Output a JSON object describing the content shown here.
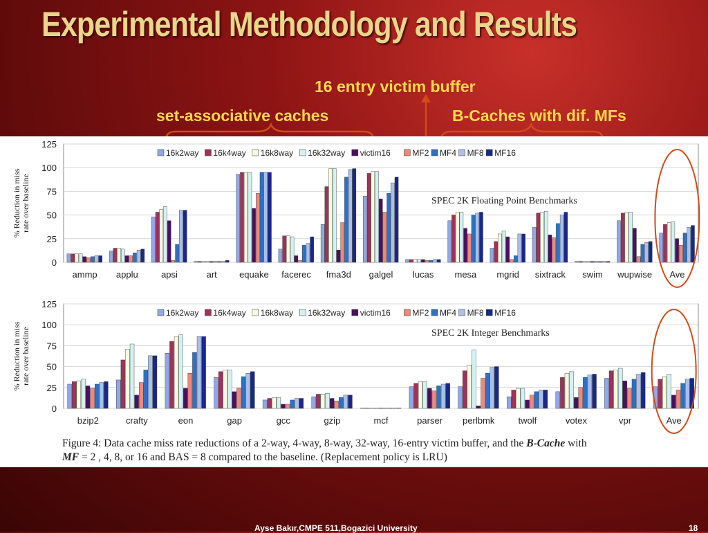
{
  "slide": {
    "title": "Experimental Methodology and Results",
    "footer": "Ayse Bakır,CMPE 511,Bogazici University",
    "page_number": "18",
    "accent_color": "#ffd94a",
    "title_color": "#e8d68a",
    "annotation_color": "#d24a16"
  },
  "annotations": {
    "victim_label": "16 entry victim buffer",
    "setassoc_label": "set-associative caches",
    "bcache_label": "B-Caches with dif. MFs"
  },
  "caption": {
    "part1": "Figure 4: Data cache miss rate reductions of a 2-way, 4-way, 8-way, 32-way, 16-entry victim buffer, and the ",
    "bcache": "B-Cache",
    "part2": " with",
    "mf": "MF",
    "part3": " = 2 , 4, 8, or 16 and BAS = 8 compared to the baseline. (Replacement policy is LRU)"
  },
  "chart_data": [
    {
      "type": "bar",
      "title": "SPEC 2K Floating Point Benchmarks",
      "ylabel": "% Reduction in miss rate over baseline",
      "ylim": [
        0,
        125
      ],
      "yticks": [
        0,
        25,
        50,
        75,
        100,
        125
      ],
      "grid": true,
      "legend_position": "top-center",
      "categories": [
        "ammp",
        "applu",
        "apsi",
        "art",
        "equake",
        "facerec",
        "fma3d",
        "galgel",
        "lucas",
        "mesa",
        "mgrid",
        "sixtrack",
        "swim",
        "wupwise",
        "Ave"
      ],
      "series": [
        {
          "name": "16k2way",
          "color": "#8fa8e8",
          "values": [
            9,
            12,
            48,
            1,
            93,
            14,
            40,
            70,
            3,
            44,
            15,
            37,
            1,
            44,
            31
          ]
        },
        {
          "name": "16k4way",
          "color": "#a0325a",
          "values": [
            9,
            15,
            53,
            1,
            95,
            28,
            80,
            94,
            3,
            50,
            22,
            52,
            1,
            52,
            40
          ]
        },
        {
          "name": "16k8way",
          "color": "#fafae0",
          "values": [
            9,
            15,
            56,
            1,
            95,
            28,
            99,
            96,
            3,
            53,
            30,
            53,
            1,
            53,
            42
          ]
        },
        {
          "name": "16k32way",
          "color": "#d2f2f2",
          "values": [
            9,
            14,
            59,
            1,
            95,
            27,
            99,
            96,
            3,
            53,
            33,
            54,
            1,
            53,
            43
          ]
        },
        {
          "name": "victim16",
          "color": "#4a1060",
          "values": [
            6,
            7,
            44,
            1,
            57,
            7,
            13,
            67,
            3,
            36,
            27,
            29,
            1,
            36,
            25
          ]
        },
        {
          "name": "MF2",
          "color": "#f0887a",
          "values": [
            5,
            7,
            2,
            1,
            73,
            2,
            42,
            53,
            2,
            30,
            3,
            26,
            1,
            6,
            18
          ]
        },
        {
          "name": "MF4",
          "color": "#2a72c8",
          "values": [
            6,
            10,
            19,
            1,
            95,
            18,
            90,
            73,
            2,
            50,
            7,
            41,
            1,
            19,
            31
          ]
        },
        {
          "name": "MF8",
          "color": "#aac0e8",
          "values": [
            7,
            13,
            55,
            1,
            95,
            20,
            98,
            84,
            3,
            52,
            30,
            50,
            1,
            21,
            37
          ]
        },
        {
          "name": "MF16",
          "color": "#18288a",
          "values": [
            7,
            14,
            55,
            2,
            95,
            27,
            99,
            90,
            3,
            53,
            30,
            53,
            1,
            22,
            39
          ]
        }
      ]
    },
    {
      "type": "bar",
      "title": "SPEC 2K Integer Benchmarks",
      "ylabel": "% Reduction in miss rate over baseline",
      "ylim": [
        0,
        125
      ],
      "yticks": [
        0,
        25,
        50,
        75,
        100,
        125
      ],
      "grid": true,
      "legend_position": "top-center",
      "categories": [
        "bzip2",
        "crafty",
        "eon",
        "gap",
        "gcc",
        "gzip",
        "mcf",
        "parser",
        "perlbmk",
        "twolf",
        "votex",
        "vpr",
        "Ave"
      ],
      "series": [
        {
          "name": "16k2way",
          "color": "#8fa8e8",
          "values": [
            29,
            34,
            66,
            37,
            10,
            14,
            0.5,
            26,
            26,
            14,
            20,
            36,
            26
          ]
        },
        {
          "name": "16k4way",
          "color": "#a0325a",
          "values": [
            32,
            58,
            80,
            44,
            12,
            17,
            0.5,
            30,
            45,
            22,
            37,
            45,
            35
          ]
        },
        {
          "name": "16k8way",
          "color": "#fafae0",
          "values": [
            33,
            71,
            86,
            46,
            13,
            17,
            0.5,
            32,
            52,
            24,
            42,
            46,
            38
          ]
        },
        {
          "name": "16k32way",
          "color": "#d2f2f2",
          "values": [
            35,
            77,
            88,
            46,
            13,
            18,
            0.5,
            32,
            70,
            24,
            44,
            48,
            41
          ]
        },
        {
          "name": "victim16",
          "color": "#4a1060",
          "values": [
            27,
            16,
            24,
            20,
            5,
            12,
            0.5,
            24,
            3,
            10,
            13,
            33,
            16
          ]
        },
        {
          "name": "MF2",
          "color": "#f0887a",
          "values": [
            24,
            31,
            42,
            24,
            5,
            9,
            0.5,
            21,
            36,
            16,
            25,
            24,
            22
          ]
        },
        {
          "name": "MF4",
          "color": "#2a72c8",
          "values": [
            29,
            46,
            67,
            38,
            10,
            13,
            0.5,
            27,
            42,
            20,
            37,
            35,
            30
          ]
        },
        {
          "name": "MF8",
          "color": "#aac0e8",
          "values": [
            31,
            63,
            86,
            42,
            12,
            16,
            0.5,
            29,
            49,
            22,
            40,
            41,
            35
          ]
        },
        {
          "name": "MF16",
          "color": "#18288a",
          "values": [
            32,
            63,
            86,
            44,
            12,
            16,
            0.5,
            30,
            50,
            22,
            41,
            43,
            36
          ]
        }
      ]
    }
  ]
}
